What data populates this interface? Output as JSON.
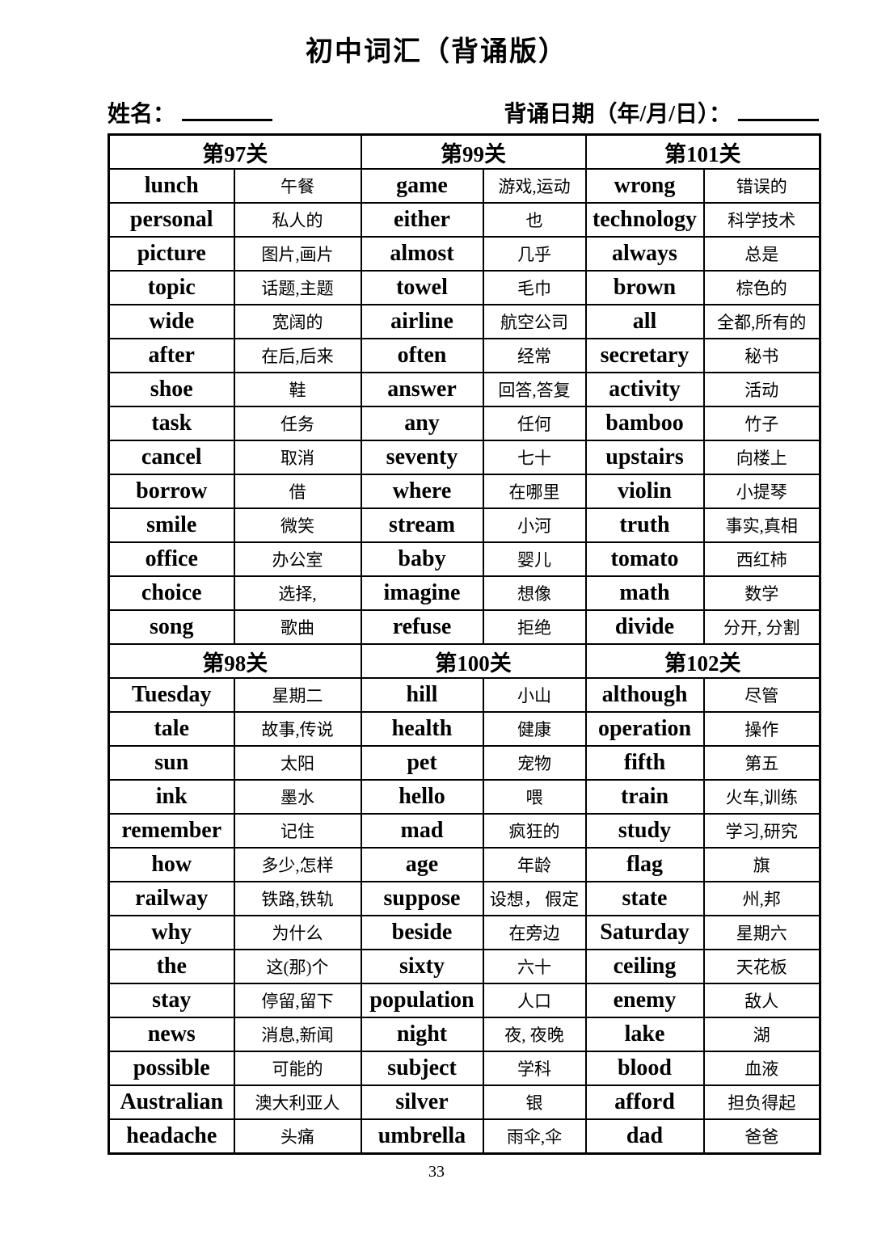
{
  "page": {
    "title": "初中词汇（背诵版）",
    "name_label": "姓名：",
    "date_label": "背诵日期（年/月/日）：",
    "page_number": "33"
  },
  "sections": [
    {
      "header": "第97关",
      "entries": [
        {
          "en": "lunch",
          "zh": "午餐"
        },
        {
          "en": "personal",
          "zh": "私人的"
        },
        {
          "en": "picture",
          "zh": "图片,画片"
        },
        {
          "en": "topic",
          "zh": "话题,主题"
        },
        {
          "en": "wide",
          "zh": "宽阔的"
        },
        {
          "en": "after",
          "zh": "在后,后来"
        },
        {
          "en": "shoe",
          "zh": "鞋"
        },
        {
          "en": "task",
          "zh": "任务"
        },
        {
          "en": "cancel",
          "zh": "取消"
        },
        {
          "en": "borrow",
          "zh": "借"
        },
        {
          "en": "smile",
          "zh": "微笑"
        },
        {
          "en": "office",
          "zh": "办公室"
        },
        {
          "en": "choice",
          "zh": "选择,"
        },
        {
          "en": "song",
          "zh": "歌曲"
        }
      ]
    },
    {
      "header": "第99关",
      "entries": [
        {
          "en": "game",
          "zh": "游戏,运动"
        },
        {
          "en": "either",
          "zh": "也"
        },
        {
          "en": "almost",
          "zh": "几乎"
        },
        {
          "en": "towel",
          "zh": "毛巾"
        },
        {
          "en": "airline",
          "zh": "航空公司"
        },
        {
          "en": "often",
          "zh": "经常"
        },
        {
          "en": "answer",
          "zh": "回答,答复"
        },
        {
          "en": "any",
          "zh": "任何"
        },
        {
          "en": "seventy",
          "zh": "七十"
        },
        {
          "en": "where",
          "zh": "在哪里"
        },
        {
          "en": "stream",
          "zh": "小河"
        },
        {
          "en": "baby",
          "zh": "婴儿"
        },
        {
          "en": "imagine",
          "zh": "想像"
        },
        {
          "en": "refuse",
          "zh": "拒绝"
        }
      ]
    },
    {
      "header": "第101关",
      "entries": [
        {
          "en": "wrong",
          "zh": "错误的"
        },
        {
          "en": "technology",
          "zh": "科学技术"
        },
        {
          "en": "always",
          "zh": "总是"
        },
        {
          "en": "brown",
          "zh": "棕色的"
        },
        {
          "en": "all",
          "zh": "全都,所有的"
        },
        {
          "en": "secretary",
          "zh": "秘书"
        },
        {
          "en": "activity",
          "zh": "活动"
        },
        {
          "en": "bamboo",
          "zh": "竹子"
        },
        {
          "en": "upstairs",
          "zh": "向楼上"
        },
        {
          "en": "violin",
          "zh": "小提琴"
        },
        {
          "en": "truth",
          "zh": "事实,真相"
        },
        {
          "en": "tomato",
          "zh": "西红柿"
        },
        {
          "en": "math",
          "zh": "数学"
        },
        {
          "en": "divide",
          "zh": "分开, 分割"
        }
      ]
    },
    {
      "header": "第98关",
      "entries": [
        {
          "en": "Tuesday",
          "zh": "星期二"
        },
        {
          "en": "tale",
          "zh": "故事,传说"
        },
        {
          "en": "sun",
          "zh": "太阳"
        },
        {
          "en": "ink",
          "zh": "墨水"
        },
        {
          "en": "remember",
          "zh": "记住"
        },
        {
          "en": "how",
          "zh": "多少,怎样"
        },
        {
          "en": "railway",
          "zh": "铁路,铁轨"
        },
        {
          "en": "why",
          "zh": "为什么"
        },
        {
          "en": "the",
          "zh": "这(那)个"
        },
        {
          "en": "stay",
          "zh": "停留,留下"
        },
        {
          "en": "news",
          "zh": "消息,新闻"
        },
        {
          "en": "possible",
          "zh": "可能的"
        },
        {
          "en": "Australian",
          "zh": "澳大利亚人"
        },
        {
          "en": "headache",
          "zh": "头痛"
        }
      ]
    },
    {
      "header": "第100关",
      "entries": [
        {
          "en": "hill",
          "zh": "小山"
        },
        {
          "en": "health",
          "zh": "健康"
        },
        {
          "en": "pet",
          "zh": "宠物"
        },
        {
          "en": "hello",
          "zh": "喂"
        },
        {
          "en": "mad",
          "zh": "疯狂的"
        },
        {
          "en": "age",
          "zh": "年龄"
        },
        {
          "en": "suppose",
          "zh": "设想， 假定"
        },
        {
          "en": "beside",
          "zh": "在旁边"
        },
        {
          "en": "sixty",
          "zh": "六十"
        },
        {
          "en": "population",
          "zh": "人口"
        },
        {
          "en": "night",
          "zh": "夜, 夜晚"
        },
        {
          "en": "subject",
          "zh": "学科"
        },
        {
          "en": "silver",
          "zh": "银"
        },
        {
          "en": "umbrella",
          "zh": "雨伞,伞"
        }
      ]
    },
    {
      "header": "第102关",
      "entries": [
        {
          "en": "although",
          "zh": "尽管"
        },
        {
          "en": "operation",
          "zh": "操作"
        },
        {
          "en": "fifth",
          "zh": "第五"
        },
        {
          "en": "train",
          "zh": "火车,训练"
        },
        {
          "en": "study",
          "zh": "学习,研究"
        },
        {
          "en": "flag",
          "zh": "旗"
        },
        {
          "en": "state",
          "zh": "州,邦"
        },
        {
          "en": "Saturday",
          "zh": "星期六"
        },
        {
          "en": "ceiling",
          "zh": "天花板"
        },
        {
          "en": "enemy",
          "zh": "敌人"
        },
        {
          "en": "lake",
          "zh": "湖"
        },
        {
          "en": "blood",
          "zh": "血液"
        },
        {
          "en": "afford",
          "zh": "担负得起"
        },
        {
          "en": "dad",
          "zh": "爸爸"
        }
      ]
    }
  ]
}
